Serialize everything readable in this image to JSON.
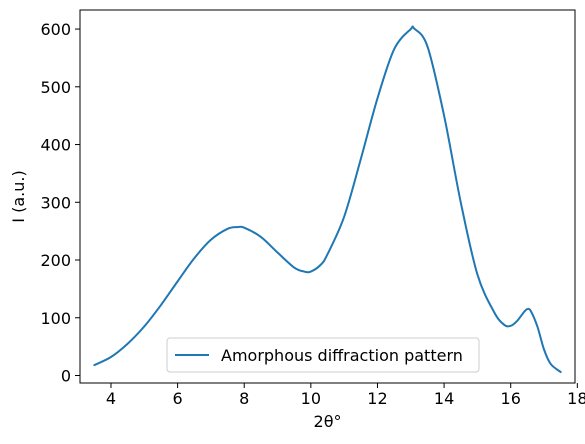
{
  "chart_data": {
    "type": "line",
    "title": "",
    "xlabel": "2θ°",
    "ylabel": "I (a.u.)",
    "xlim": [
      3.07,
      17.93
    ],
    "ylim": [
      -13,
      633
    ],
    "xticks": [
      4,
      6,
      8,
      10,
      12,
      14,
      16,
      18
    ],
    "yticks": [
      0,
      100,
      200,
      300,
      400,
      500,
      600
    ],
    "grid": false,
    "legend_position": "lower center",
    "series": [
      {
        "name": "Amorphous diffraction pattern",
        "color": "#1f77b4",
        "x": [
          3.5,
          4.0,
          4.5,
          5.0,
          5.5,
          6.0,
          6.5,
          7.0,
          7.5,
          7.8,
          8.0,
          8.5,
          9.0,
          9.5,
          9.8,
          10.0,
          10.3,
          10.5,
          11.0,
          11.5,
          12.0,
          12.5,
          13.0,
          13.1,
          13.5,
          14.0,
          14.5,
          15.0,
          15.5,
          15.8,
          16.0,
          16.2,
          16.4,
          16.5,
          16.6,
          16.8,
          17.0,
          17.2,
          17.5
        ],
        "y": [
          18,
          32,
          55,
          85,
          122,
          163,
          203,
          235,
          254,
          257,
          256,
          240,
          213,
          187,
          180,
          180,
          192,
          210,
          275,
          375,
          480,
          565,
          600,
          601,
          570,
          450,
          300,
          175,
          110,
          88,
          86,
          95,
          110,
          115,
          112,
          85,
          45,
          20,
          6
        ]
      }
    ]
  }
}
